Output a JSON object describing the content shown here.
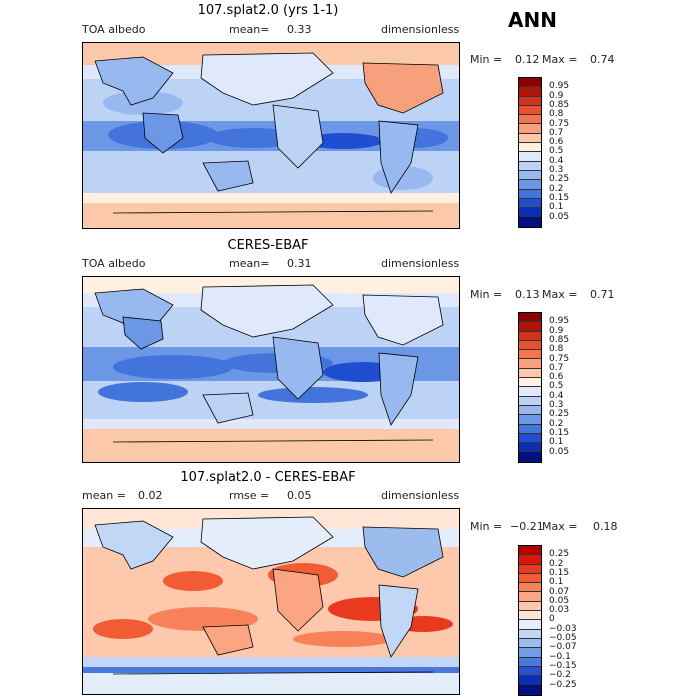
{
  "season": "ANN",
  "panels": [
    {
      "title": "107.splat2.0 (yrs 1-1)",
      "left_label": "TOA albedo",
      "center_label": "mean=",
      "center_value": "0.33",
      "right_label": "dimensionless",
      "min_label": "Min =",
      "min_value": "0.12",
      "max_label": "Max =",
      "max_value": "0.74",
      "colorbar": {
        "levels": [
          "0.95",
          "0.9",
          "0.85",
          "0.8",
          "0.75",
          "0.7",
          "0.6",
          "0.5",
          "0.4",
          "0.3",
          "0.25",
          "0.2",
          "0.15",
          "0.1",
          "0.05"
        ],
        "colors": [
          "#8b0000",
          "#b0150a",
          "#d2321e",
          "#e8502e",
          "#f2754f",
          "#f7a07e",
          "#fbc9a9",
          "#fff0e1",
          "#dfe9fb",
          "#bcd3f5",
          "#97b9ef",
          "#6b97e6",
          "#4274dc",
          "#1f4fd0",
          "#0a2fb4",
          "#00107e"
        ]
      }
    },
    {
      "title": "CERES-EBAF",
      "left_label": "TOA albedo",
      "center_label": "mean=",
      "center_value": "0.31",
      "right_label": "dimensionless",
      "min_label": "Min =",
      "min_value": "0.13",
      "max_label": "Max =",
      "max_value": "0.71",
      "colorbar": {
        "levels": [
          "0.95",
          "0.9",
          "0.85",
          "0.8",
          "0.75",
          "0.7",
          "0.6",
          "0.5",
          "0.4",
          "0.3",
          "0.25",
          "0.2",
          "0.15",
          "0.1",
          "0.05"
        ],
        "colors": [
          "#8b0000",
          "#b0150a",
          "#d2321e",
          "#e8502e",
          "#f2754f",
          "#f7a07e",
          "#fbc9a9",
          "#fff0e1",
          "#dfe9fb",
          "#bcd3f5",
          "#97b9ef",
          "#6b97e6",
          "#4274dc",
          "#1f4fd0",
          "#0a2fb4",
          "#00107e"
        ]
      }
    },
    {
      "title": "107.splat2.0 - CERES-EBAF",
      "left_label": "mean =",
      "left_value": "0.02",
      "center_label": "rmse =",
      "center_value": "0.05",
      "right_label": "dimensionless",
      "min_label": "Min =",
      "min_value": "−0.21",
      "max_label": "Max =",
      "max_value": "0.18",
      "colorbar": {
        "levels": [
          "0.25",
          "0.2",
          "0.15",
          "0.1",
          "0.07",
          "0.05",
          "0.03",
          "0",
          "−0.03",
          "−0.05",
          "−0.07",
          "−0.1",
          "−0.15",
          "−0.2",
          "−0.25"
        ],
        "colors": [
          "#b80000",
          "#d7190d",
          "#e9391e",
          "#f25c35",
          "#f7825a",
          "#fba583",
          "#fdc8ac",
          "#ffe6d6",
          "#e4eefb",
          "#c2d6f5",
          "#9cbcee",
          "#739ce6",
          "#4a78dc",
          "#2553cf",
          "#0a31b5",
          "#001080"
        ]
      }
    }
  ]
}
